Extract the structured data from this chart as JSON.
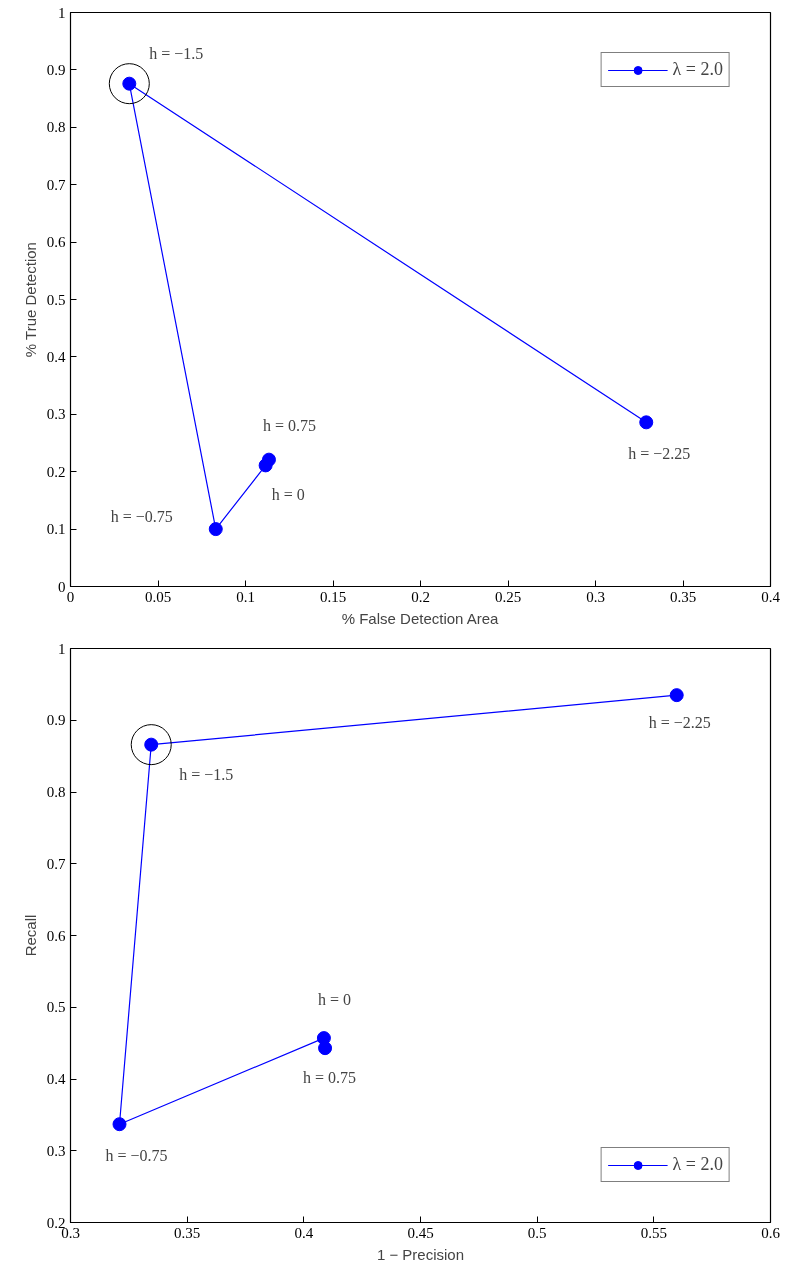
{
  "chart_data": [
    {
      "type": "line",
      "xlabel": "% False Detection Area",
      "ylabel": "% True Detection",
      "xlim": [
        0,
        0.4
      ],
      "ylim": [
        0,
        1
      ],
      "xticks": [
        0,
        0.05,
        0.1,
        0.15,
        0.2,
        0.25,
        0.3,
        0.35,
        0.4
      ],
      "yticks": [
        0,
        0.1,
        0.2,
        0.3,
        0.4,
        0.5,
        0.6,
        0.7,
        0.8,
        0.9,
        1
      ],
      "grid": false,
      "legend": "top right",
      "marker": "circle",
      "line_style": "solid",
      "x": [
        0.329,
        0.0336,
        0.083,
        0.1115,
        0.1134
      ],
      "series": [
        {
          "name": "λ = 2.0",
          "color": "#0000ff",
          "values": [
            0.286,
            0.876,
            0.1,
            0.211,
            0.221
          ]
        }
      ],
      "annotations": [
        {
          "text": "h = −2.25",
          "x": 0.329,
          "y": 0.286
        },
        {
          "text": "h = −1.5",
          "x": 0.0336,
          "y": 0.876
        },
        {
          "text": "h = −0.75",
          "x": 0.083,
          "y": 0.1
        },
        {
          "text": "h = 0",
          "x": 0.1115,
          "y": 0.211
        },
        {
          "text": "h = 0.75",
          "x": 0.1134,
          "y": 0.221
        }
      ]
    },
    {
      "type": "line",
      "xlabel": "1 − Precision",
      "ylabel": "Recall",
      "xlim": [
        0.3,
        0.6
      ],
      "ylim": [
        0.2,
        1
      ],
      "xticks": [
        0.3,
        0.35,
        0.4,
        0.45,
        0.5,
        0.55,
        0.6
      ],
      "yticks": [
        0.2,
        0.3,
        0.4,
        0.5,
        0.6,
        0.7,
        0.8,
        0.9,
        1
      ],
      "grid": false,
      "legend": "bottom right",
      "marker": "circle",
      "line_style": "solid",
      "x": [
        0.5598,
        0.3346,
        0.321,
        0.4086,
        0.4091
      ],
      "series": [
        {
          "name": "λ = 2.0",
          "color": "#0000ff",
          "values": [
            0.935,
            0.866,
            0.337,
            0.457,
            0.443
          ]
        }
      ],
      "annotations": [
        {
          "text": "h = −2.25",
          "x": 0.5598,
          "y": 0.935
        },
        {
          "text": "h = −1.5",
          "x": 0.3346,
          "y": 0.866
        },
        {
          "text": "h = −0.75",
          "x": 0.321,
          "y": 0.337
        },
        {
          "text": "h = 0",
          "x": 0.4086,
          "y": 0.457
        },
        {
          "text": "h = 0.75",
          "x": 0.4091,
          "y": 0.443
        }
      ]
    }
  ]
}
